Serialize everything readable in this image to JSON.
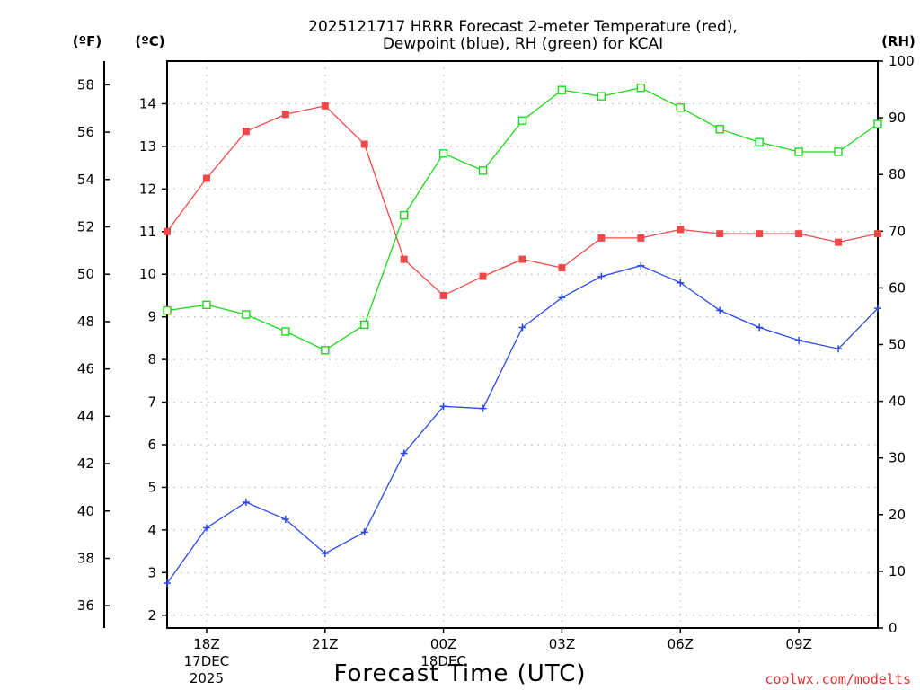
{
  "chart_data": {
    "type": "line",
    "title": [
      "2025121717 HRRR Forecast 2-meter Temperature (red),",
      "Dewpoint (blue), RH (green) for KCAI"
    ],
    "unit_labels": {
      "fahrenheit": "(ºF)",
      "celsius": "(ºC)",
      "rh": "(RH)"
    },
    "xlabel": "Forecast Time (UTC)",
    "credit": "coolwx.com/modelts",
    "x_hours": [
      17,
      18,
      19,
      20,
      21,
      22,
      23,
      24,
      25,
      26,
      27,
      28,
      29,
      30,
      31,
      32,
      33,
      34,
      35
    ],
    "xlim": [
      17,
      35
    ],
    "x_ticks": [
      {
        "hour": 18,
        "lines": [
          "18Z",
          "17DEC",
          "2025"
        ]
      },
      {
        "hour": 21,
        "lines": [
          "21Z"
        ]
      },
      {
        "hour": 24,
        "lines": [
          "00Z",
          "18DEC"
        ]
      },
      {
        "hour": 27,
        "lines": [
          "03Z"
        ]
      },
      {
        "hour": 30,
        "lines": [
          "06Z"
        ]
      },
      {
        "hour": 33,
        "lines": [
          "09Z"
        ]
      }
    ],
    "celsius_axis": {
      "min": 1.7,
      "max": 15.0,
      "ticks": [
        2,
        3,
        4,
        5,
        6,
        7,
        8,
        9,
        10,
        11,
        12,
        13,
        14
      ]
    },
    "fahrenheit_axis": {
      "ticks": [
        36,
        38,
        40,
        42,
        44,
        46,
        48,
        50,
        52,
        54,
        56,
        58
      ]
    },
    "rh_axis": {
      "min": 0,
      "max": 100,
      "ticks": [
        0,
        10,
        20,
        30,
        40,
        50,
        60,
        70,
        80,
        90,
        100
      ]
    },
    "series": [
      {
        "name": "Temperature",
        "axis": "celsius",
        "color": "#f04848",
        "marker": "filled-square",
        "values": [
          11.0,
          12.25,
          13.35,
          13.75,
          13.95,
          13.05,
          10.35,
          9.5,
          9.95,
          10.35,
          10.15,
          10.85,
          10.85,
          11.05,
          10.95,
          10.95,
          10.95,
          10.75,
          10.95
        ]
      },
      {
        "name": "Dewpoint",
        "axis": "celsius",
        "color": "#2a48e8",
        "marker": "plus",
        "values": [
          2.75,
          4.05,
          4.65,
          4.25,
          3.45,
          3.95,
          5.8,
          6.9,
          6.85,
          8.75,
          9.45,
          9.95,
          10.2,
          9.8,
          9.15,
          8.75,
          8.45,
          8.25,
          9.2
        ]
      },
      {
        "name": "RH",
        "axis": "rh",
        "color": "#1cd81c",
        "marker": "open-square",
        "values": [
          56,
          57,
          55.3,
          52.3,
          49,
          53.5,
          72.8,
          83.7,
          80.7,
          89.5,
          94.9,
          93.8,
          95.3,
          91.8,
          88,
          85.7,
          84,
          84,
          88.9
        ]
      }
    ]
  }
}
